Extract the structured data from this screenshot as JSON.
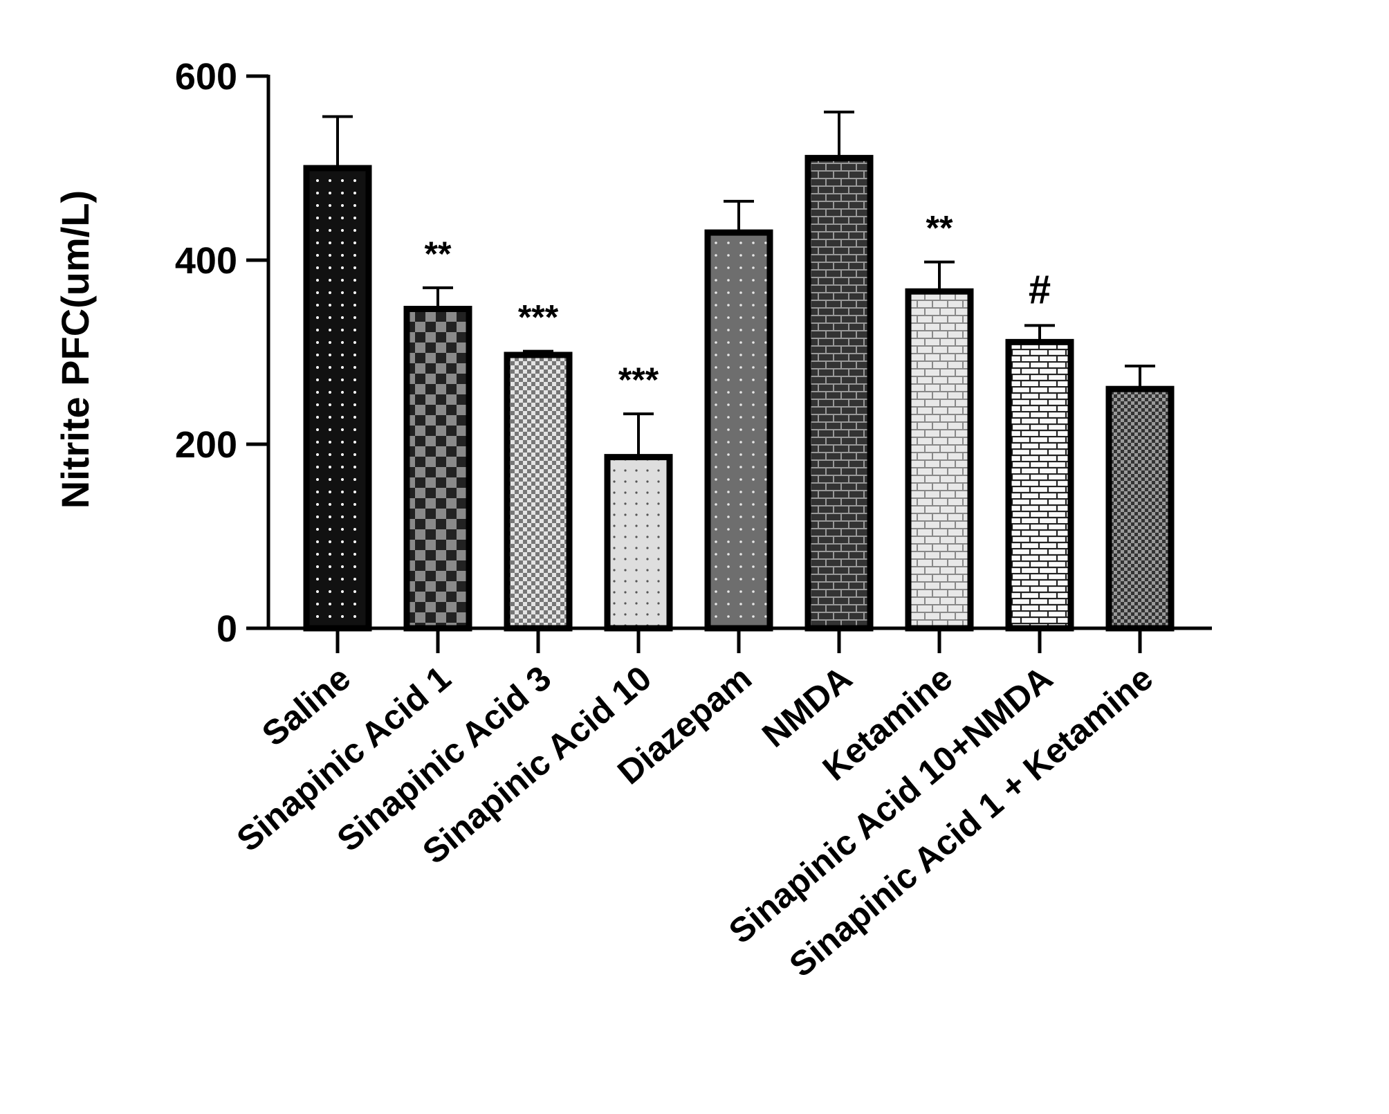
{
  "chart_data": {
    "type": "bar",
    "title": "",
    "xlabel": "",
    "ylabel": "Nitrite PFC(um/L)",
    "ylim": [
      0,
      600
    ],
    "yticks": [
      0,
      200,
      400,
      600
    ],
    "grid": false,
    "legend": "none",
    "categories": [
      "Saline",
      "Sinapinic Acid 1",
      "Sinapinic Acid 3",
      "Sinapinic Acid 10",
      "Diazepam",
      "NMDA",
      "Ketamine",
      "Sinapinic Acid 10+NMDA",
      "Sinapinic Acid 1 + Ketamine"
    ],
    "values": [
      500,
      347,
      297,
      186,
      430,
      511,
      366,
      311,
      260
    ],
    "errors": [
      56,
      23,
      4,
      47,
      34,
      50,
      32,
      18,
      25
    ],
    "annotations": [
      "",
      "**",
      "***",
      "***",
      "",
      "",
      "**",
      "#",
      ""
    ],
    "patterns": [
      "dots-dark",
      "checker-large",
      "checker-small",
      "dots-light",
      "dots-gray",
      "brick-dark",
      "brick-light",
      "brick-white",
      "checker-tiny"
    ]
  }
}
